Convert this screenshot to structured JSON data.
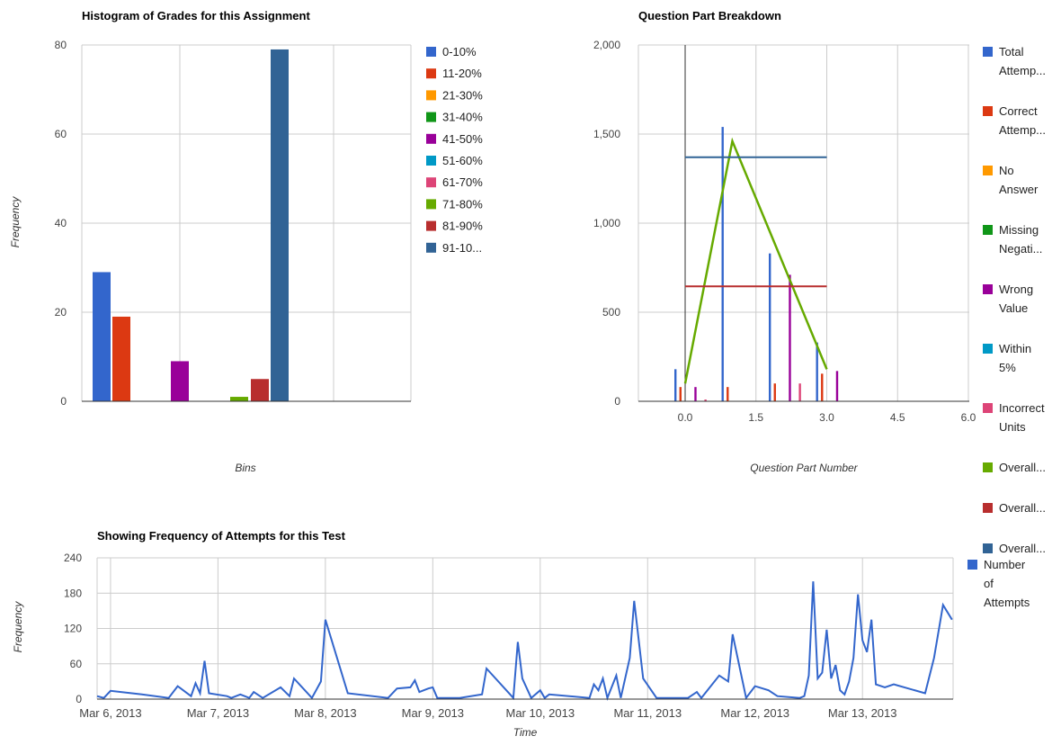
{
  "charts": {
    "histogram": {
      "title": "Histogram of Grades for this Assignment",
      "xlabel": "Bins",
      "ylabel": "Frequency",
      "yticks": [
        "80",
        "60",
        "40",
        "20",
        "0"
      ]
    },
    "breakdown": {
      "title": "Question Part Breakdown",
      "xlabel": "Question Part Number",
      "ylabel": "",
      "yticks": [
        "2,000",
        "1,500",
        "1,000",
        "500",
        "0"
      ],
      "xticks": [
        "0.0",
        "1.5",
        "3.0",
        "4.5",
        "6.0"
      ]
    },
    "attempts": {
      "title": "Showing Frequency of Attempts for this Test",
      "xlabel": "Time",
      "ylabel": "Frequency",
      "yticks": [
        "240",
        "180",
        "120",
        "60",
        "0"
      ],
      "xticks": [
        "Mar 6, 2013",
        "Mar 7, 2013",
        "Mar 8, 2013",
        "Mar 9, 2013",
        "Mar 10, 2013",
        "Mar 11, 2013",
        "Mar 12, 2013",
        "Mar 13, 2013"
      ]
    }
  },
  "chart_data": [
    {
      "type": "bar",
      "title": "Histogram of Grades for this Assignment",
      "xlabel": "Bins",
      "ylabel": "Frequency",
      "ylim": [
        0,
        80
      ],
      "grid": true,
      "legend_position": "right",
      "series": [
        {
          "name": "0-10%",
          "color": "#3366cc",
          "values": [
            29
          ]
        },
        {
          "name": "11-20%",
          "color": "#dc3912",
          "values": [
            19
          ]
        },
        {
          "name": "21-30%",
          "color": "#ff9900",
          "values": [
            0
          ]
        },
        {
          "name": "31-40%",
          "color": "#109618",
          "values": [
            0
          ]
        },
        {
          "name": "41-50%",
          "color": "#990099",
          "values": [
            9
          ]
        },
        {
          "name": "51-60%",
          "color": "#0099c6",
          "values": [
            0
          ]
        },
        {
          "name": "61-70%",
          "color": "#dd4477",
          "values": [
            0
          ]
        },
        {
          "name": "71-80%",
          "color": "#66aa00",
          "values": [
            1
          ]
        },
        {
          "name": "81-90%",
          "color": "#b82e2e",
          "values": [
            5
          ]
        },
        {
          "name": "91-10...",
          "color": "#316395",
          "values": [
            79
          ]
        }
      ]
    },
    {
      "type": "bar",
      "title": "Question Part Breakdown",
      "xlabel": "Question Part Number",
      "ylim": [
        0,
        2000
      ],
      "xlim": [
        -0.8,
        6.0
      ],
      "grid": true,
      "legend_position": "right",
      "x": [
        0,
        1,
        2,
        3
      ],
      "series": [
        {
          "name": "Total Attemp...",
          "legend_lines": [
            "Total",
            "Attemp..."
          ],
          "color": "#3366cc",
          "kind": "bar",
          "values": [
            180,
            1540,
            830,
            330
          ]
        },
        {
          "name": "Correct Attemp...",
          "legend_lines": [
            "Correct",
            "Attemp..."
          ],
          "color": "#dc3912",
          "kind": "bar",
          "values": [
            80,
            80,
            100,
            155
          ]
        },
        {
          "name": "No Answer",
          "legend_lines": [
            "No",
            "Answer"
          ],
          "color": "#ff9900",
          "kind": "bar",
          "values": [
            0,
            0,
            0,
            0
          ]
        },
        {
          "name": "Missing Negati...",
          "legend_lines": [
            "Missing",
            "Negati..."
          ],
          "color": "#109618",
          "kind": "bar",
          "values": [
            0,
            0,
            0,
            0
          ]
        },
        {
          "name": "Wrong Value",
          "legend_lines": [
            "Wrong",
            "Value"
          ],
          "color": "#990099",
          "kind": "bar",
          "values": [
            80,
            0,
            710,
            170
          ]
        },
        {
          "name": "Within 5%",
          "legend_lines": [
            "Within",
            "5%"
          ],
          "color": "#0099c6",
          "kind": "bar",
          "values": [
            0,
            0,
            0,
            0
          ]
        },
        {
          "name": "Incorrect Units",
          "legend_lines": [
            "Incorrect",
            "Units"
          ],
          "color": "#dd4477",
          "kind": "bar",
          "values": [
            10,
            0,
            100,
            0
          ]
        },
        {
          "name": "Overall...",
          "legend_lines": [
            "Overall..."
          ],
          "color": "#66aa00",
          "kind": "line",
          "points": [
            [
              0,
              100
            ],
            [
              1,
              1460
            ],
            [
              3,
              180
            ]
          ]
        },
        {
          "name": "Overall...",
          "legend_lines": [
            "Overall..."
          ],
          "color": "#b82e2e",
          "kind": "hline",
          "points": [
            [
              0,
              645
            ],
            [
              3,
              645
            ]
          ]
        },
        {
          "name": "Overall...",
          "legend_lines": [
            "Overall..."
          ],
          "color": "#316395",
          "kind": "hline",
          "points": [
            [
              0,
              1370
            ],
            [
              3,
              1370
            ]
          ]
        }
      ]
    },
    {
      "type": "line",
      "title": "Showing Frequency of Attempts for this Test",
      "xlabel": "Time",
      "ylabel": "Frequency",
      "ylim": [
        0,
        240
      ],
      "xlim": [
        "Mar 5, 2013 21:00",
        "Mar 13, 2013 20:15"
      ],
      "grid": true,
      "legend_position": "right",
      "series": [
        {
          "name": "Number of Attempts",
          "legend_lines": [
            "Number",
            "of",
            "Attempts"
          ],
          "color": "#3366cc",
          "points": [
            [
              "Mar 5, 2013 21:00",
              5
            ],
            [
              "Mar 5, 2013 22:30",
              2
            ],
            [
              "Mar 6, 2013 00:00",
              14
            ],
            [
              "Mar 6, 2013 07:00",
              8
            ],
            [
              "Mar 6, 2013 13:00",
              2
            ],
            [
              "Mar 6, 2013 15:00",
              22
            ],
            [
              "Mar 6, 2013 18:00",
              5
            ],
            [
              "Mar 6, 2013 19:00",
              27
            ],
            [
              "Mar 6, 2013 20:00",
              10
            ],
            [
              "Mar 6, 2013 21:00",
              65
            ],
            [
              "Mar 6, 2013 22:00",
              10
            ],
            [
              "Mar 7, 2013 02:00",
              5
            ],
            [
              "Mar 7, 2013 03:00",
              2
            ],
            [
              "Mar 7, 2013 05:00",
              8
            ],
            [
              "Mar 7, 2013 07:00",
              2
            ],
            [
              "Mar 7, 2013 08:00",
              12
            ],
            [
              "Mar 7, 2013 10:00",
              2
            ],
            [
              "Mar 7, 2013 14:00",
              20
            ],
            [
              "Mar 7, 2013 16:00",
              5
            ],
            [
              "Mar 7, 2013 17:00",
              35
            ],
            [
              "Mar 7, 2013 21:00",
              2
            ],
            [
              "Mar 7, 2013 23:00",
              30
            ],
            [
              "Mar 8, 2013 00:00",
              135
            ],
            [
              "Mar 8, 2013 05:00",
              10
            ],
            [
              "Mar 8, 2013 14:00",
              2
            ],
            [
              "Mar 8, 2013 16:00",
              18
            ],
            [
              "Mar 8, 2013 19:00",
              20
            ],
            [
              "Mar 8, 2013 20:00",
              32
            ],
            [
              "Mar 8, 2013 21:00",
              12
            ],
            [
              "Mar 8, 2013 23:00",
              18
            ],
            [
              "Mar 9, 2013 00:00",
              20
            ],
            [
              "Mar 9, 2013 01:00",
              2
            ],
            [
              "Mar 9, 2013 06:00",
              2
            ],
            [
              "Mar 9, 2013 11:00",
              8
            ],
            [
              "Mar 9, 2013 12:00",
              52
            ],
            [
              "Mar 9, 2013 18:00",
              2
            ],
            [
              "Mar 9, 2013 19:00",
              97
            ],
            [
              "Mar 9, 2013 20:00",
              35
            ],
            [
              "Mar 9, 2013 22:00",
              2
            ],
            [
              "Mar 10, 2013 00:00",
              15
            ],
            [
              "Mar 10, 2013 01:00",
              2
            ],
            [
              "Mar 10, 2013 02:00",
              8
            ],
            [
              "Mar 10, 2013 11:00",
              2
            ],
            [
              "Mar 10, 2013 12:00",
              25
            ],
            [
              "Mar 10, 2013 13:00",
              15
            ],
            [
              "Mar 10, 2013 14:00",
              35
            ],
            [
              "Mar 10, 2013 15:00",
              2
            ],
            [
              "Mar 10, 2013 17:00",
              40
            ],
            [
              "Mar 10, 2013 18:00",
              2
            ],
            [
              "Mar 10, 2013 20:00",
              70
            ],
            [
              "Mar 10, 2013 21:00",
              167
            ],
            [
              "Mar 10, 2013 23:00",
              35
            ],
            [
              "Mar 11, 2013 02:00",
              2
            ],
            [
              "Mar 11, 2013 09:00",
              2
            ],
            [
              "Mar 11, 2013 11:00",
              12
            ],
            [
              "Mar 11, 2013 12:00",
              2
            ],
            [
              "Mar 11, 2013 16:00",
              40
            ],
            [
              "Mar 11, 2013 18:00",
              30
            ],
            [
              "Mar 11, 2013 19:00",
              110
            ],
            [
              "Mar 11, 2013 22:00",
              2
            ],
            [
              "Mar 12, 2013 00:00",
              22
            ],
            [
              "Mar 12, 2013 03:00",
              15
            ],
            [
              "Mar 12, 2013 05:00",
              5
            ],
            [
              "Mar 12, 2013 10:00",
              2
            ],
            [
              "Mar 12, 2013 11:00",
              5
            ],
            [
              "Mar 12, 2013 12:00",
              40
            ],
            [
              "Mar 12, 2013 13:00",
              200
            ],
            [
              "Mar 12, 2013 14:00",
              35
            ],
            [
              "Mar 12, 2013 15:00",
              45
            ],
            [
              "Mar 12, 2013 16:00",
              118
            ],
            [
              "Mar 12, 2013 17:00",
              35
            ],
            [
              "Mar 12, 2013 18:00",
              58
            ],
            [
              "Mar 12, 2013 19:00",
              15
            ],
            [
              "Mar 12, 2013 20:00",
              8
            ],
            [
              "Mar 12, 2013 21:00",
              30
            ],
            [
              "Mar 12, 2013 22:00",
              70
            ],
            [
              "Mar 12, 2013 23:00",
              178
            ],
            [
              "Mar 13, 2013 00:00",
              100
            ],
            [
              "Mar 13, 2013 01:00",
              80
            ],
            [
              "Mar 13, 2013 02:00",
              135
            ],
            [
              "Mar 13, 2013 03:00",
              25
            ],
            [
              "Mar 13, 2013 05:00",
              20
            ],
            [
              "Mar 13, 2013 07:00",
              25
            ],
            [
              "Mar 13, 2013 14:00",
              10
            ],
            [
              "Mar 13, 2013 16:00",
              70
            ],
            [
              "Mar 13, 2013 18:00",
              160
            ],
            [
              "Mar 13, 2013 20:00",
              135
            ]
          ]
        }
      ]
    }
  ]
}
